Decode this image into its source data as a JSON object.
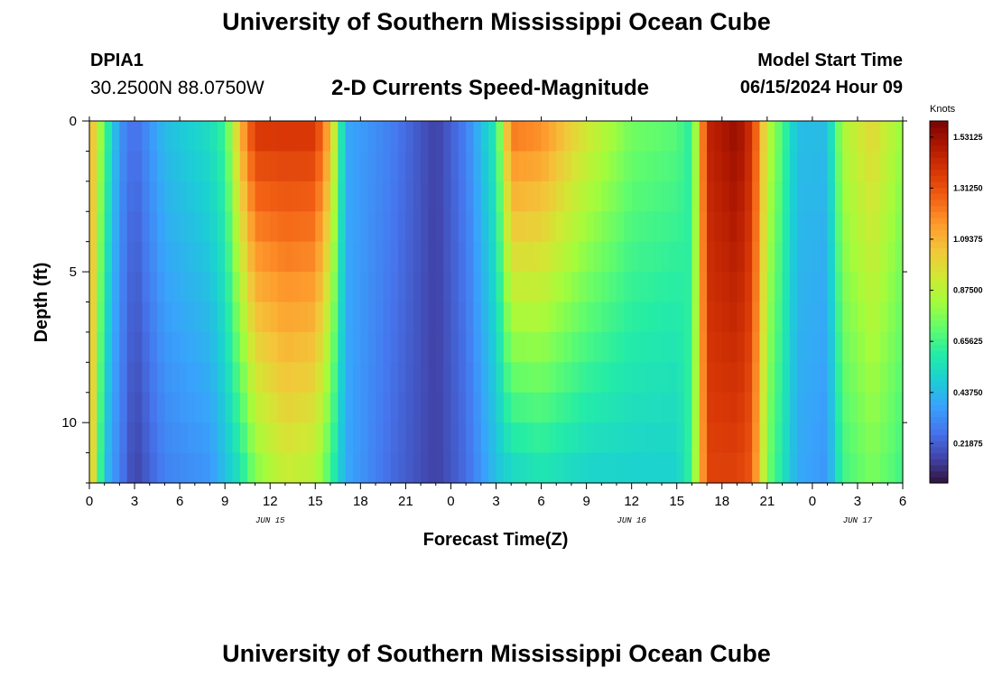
{
  "header": {
    "title": "University of Southern Mississippi Ocean Cube",
    "station_id": "DPIA1",
    "coords": "30.2500N  88.0750W",
    "plot_title": "2-D Currents Speed-Magnitude",
    "model_start_label": "Model Start Time",
    "model_start_value": "06/15/2024 Hour 09"
  },
  "footer": {
    "title": "University of Southern Mississippi Ocean Cube"
  },
  "chart_data": {
    "type": "heatmap",
    "title": "2-D Currents Speed-Magnitude",
    "xlabel": "Forecast Time(Z)",
    "ylabel": "Depth (ft)",
    "ylim": [
      0,
      12
    ],
    "y_tick_labels": [
      "0",
      "5",
      "10"
    ],
    "y_tick_values": [
      0,
      5,
      10
    ],
    "x_tick_labels": [
      "0",
      "3",
      "6",
      "9",
      "12",
      "15",
      "18",
      "21",
      "0",
      "3",
      "6",
      "9",
      "12",
      "15",
      "18",
      "21",
      "0",
      "3",
      "6"
    ],
    "x_tick_hours": [
      0,
      3,
      6,
      9,
      12,
      15,
      18,
      21,
      24,
      27,
      30,
      33,
      36,
      39,
      42,
      45,
      48,
      51,
      54
    ],
    "date_labels": [
      {
        "label": "JUN 15",
        "hour": 12
      },
      {
        "label": "JUN 16",
        "hour": 36
      },
      {
        "label": "JUN 17",
        "hour": 51
      }
    ],
    "xlim_hours": [
      0,
      54
    ],
    "colorbar": {
      "unit": "Knots",
      "min": 0.05,
      "max": 1.6,
      "tick_labels": [
        "1.53125",
        "1.31250",
        "1.09375",
        "0.87500",
        "0.65625",
        "0.43750",
        "0.21875"
      ],
      "tick_values": [
        1.53125,
        1.3125,
        1.09375,
        0.875,
        0.65625,
        0.4375,
        0.21875
      ],
      "colors": [
        "#30123b",
        "#4145ab",
        "#4675ed",
        "#39a2fc",
        "#1bcfd4",
        "#24eca6",
        "#61fc6c",
        "#a4fc3b",
        "#d1e834",
        "#f3c63a",
        "#fe9b2d",
        "#f36315",
        "#d93806",
        "#b11901",
        "#7a0403"
      ]
    },
    "speed_profile_knots": [
      {
        "hour": 0,
        "surface": 1.15,
        "bottom": 1.15
      },
      {
        "hour": 1,
        "surface": 0.7,
        "bottom": 0.45
      },
      {
        "hour": 2,
        "surface": 0.35,
        "bottom": 0.3
      },
      {
        "hour": 3,
        "surface": 0.25,
        "bottom": 0.15
      },
      {
        "hour": 5,
        "surface": 0.45,
        "bottom": 0.3
      },
      {
        "hour": 8,
        "surface": 0.55,
        "bottom": 0.35
      },
      {
        "hour": 9,
        "surface": 0.65,
        "bottom": 0.45
      },
      {
        "hour": 10,
        "surface": 1.1,
        "bottom": 0.55
      },
      {
        "hour": 11,
        "surface": 1.4,
        "bottom": 0.75
      },
      {
        "hour": 13,
        "surface": 1.4,
        "bottom": 0.9
      },
      {
        "hour": 15,
        "surface": 1.4,
        "bottom": 0.85
      },
      {
        "hour": 16,
        "surface": 1.1,
        "bottom": 0.65
      },
      {
        "hour": 17,
        "surface": 0.4,
        "bottom": 0.4
      },
      {
        "hour": 20,
        "surface": 0.3,
        "bottom": 0.25
      },
      {
        "hour": 23,
        "surface": 0.15,
        "bottom": 0.15
      },
      {
        "hour": 25,
        "surface": 0.3,
        "bottom": 0.25
      },
      {
        "hour": 27,
        "surface": 0.6,
        "bottom": 0.45
      },
      {
        "hour": 28,
        "surface": 1.25,
        "bottom": 0.5
      },
      {
        "hour": 30,
        "surface": 1.2,
        "bottom": 0.55
      },
      {
        "hour": 33,
        "surface": 0.95,
        "bottom": 0.5
      },
      {
        "hour": 36,
        "surface": 0.75,
        "bottom": 0.5
      },
      {
        "hour": 39,
        "surface": 0.7,
        "bottom": 0.5
      },
      {
        "hour": 40,
        "surface": 0.6,
        "bottom": 0.65
      },
      {
        "hour": 41,
        "surface": 1.45,
        "bottom": 1.35
      },
      {
        "hour": 43,
        "surface": 1.55,
        "bottom": 1.35
      },
      {
        "hour": 44,
        "surface": 1.4,
        "bottom": 1.3
      },
      {
        "hour": 45,
        "surface": 0.9,
        "bottom": 0.75
      },
      {
        "hour": 47,
        "surface": 0.45,
        "bottom": 0.4
      },
      {
        "hour": 49,
        "surface": 0.45,
        "bottom": 0.35
      },
      {
        "hour": 50,
        "surface": 0.85,
        "bottom": 0.65
      },
      {
        "hour": 52,
        "surface": 1.0,
        "bottom": 0.75
      },
      {
        "hour": 54,
        "surface": 0.8,
        "bottom": 0.65
      }
    ]
  }
}
